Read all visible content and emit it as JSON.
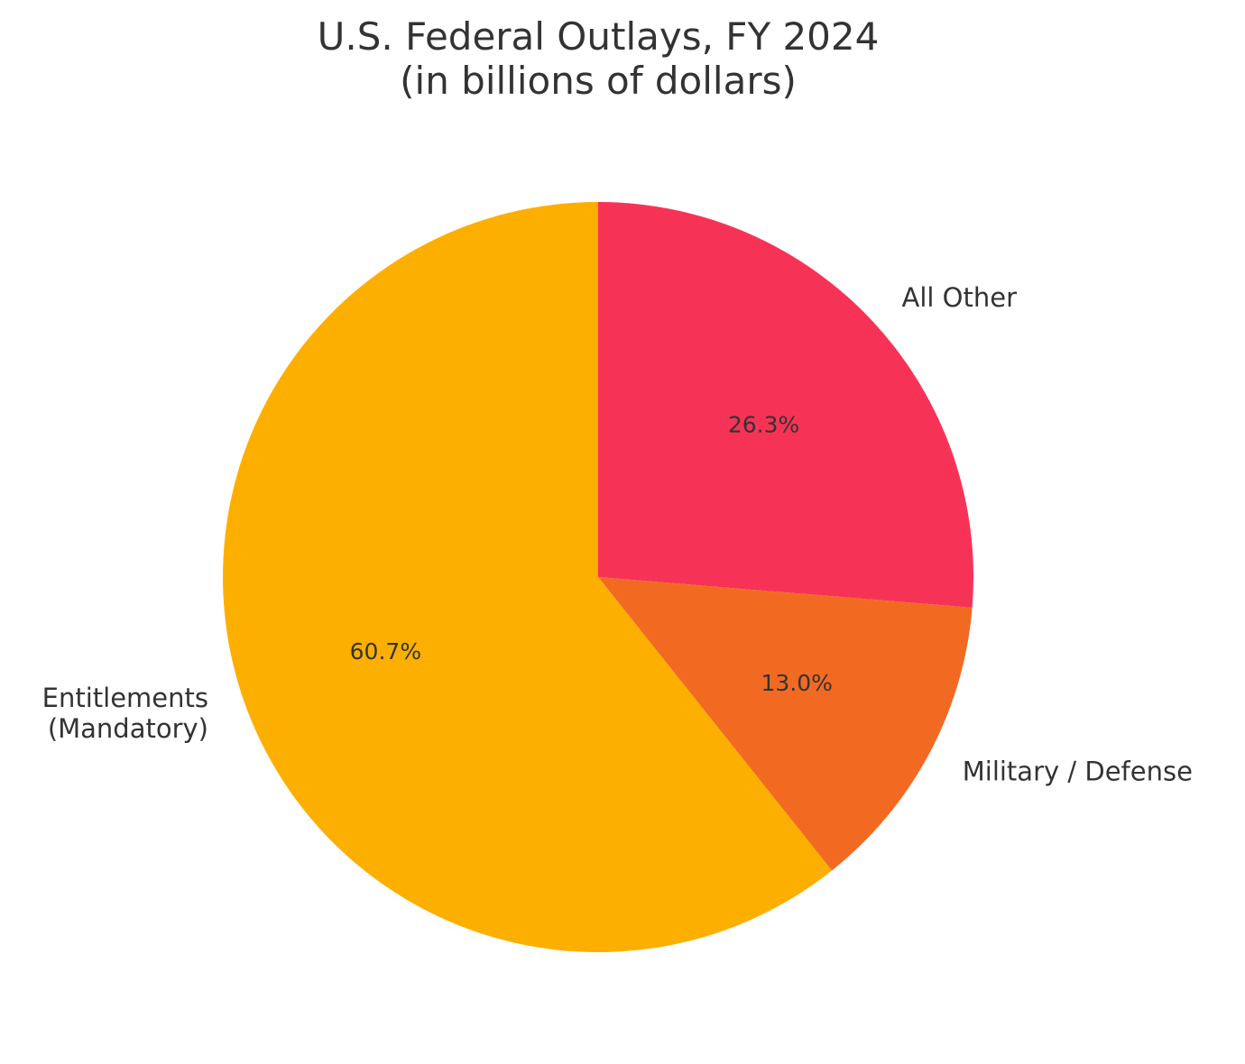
{
  "chart_data": {
    "type": "pie",
    "title_lines": [
      "U.S. Federal Outlays, FY 2024",
      "(in billions of dollars)"
    ],
    "start_angle_deg": 90,
    "direction": "clockwise",
    "slices": [
      {
        "label_lines": [
          "All Other"
        ],
        "percent_label": "26.3%",
        "value": 26.3,
        "color": "#F63357"
      },
      {
        "label_lines": [
          "Military / Defense"
        ],
        "percent_label": "13.0%",
        "value": 13.0,
        "color": "#F26A22"
      },
      {
        "label_lines": [
          "Entitlements",
          "(Mandatory)"
        ],
        "percent_label": "60.7%",
        "value": 60.7,
        "color": "#FDAF00"
      }
    ]
  }
}
